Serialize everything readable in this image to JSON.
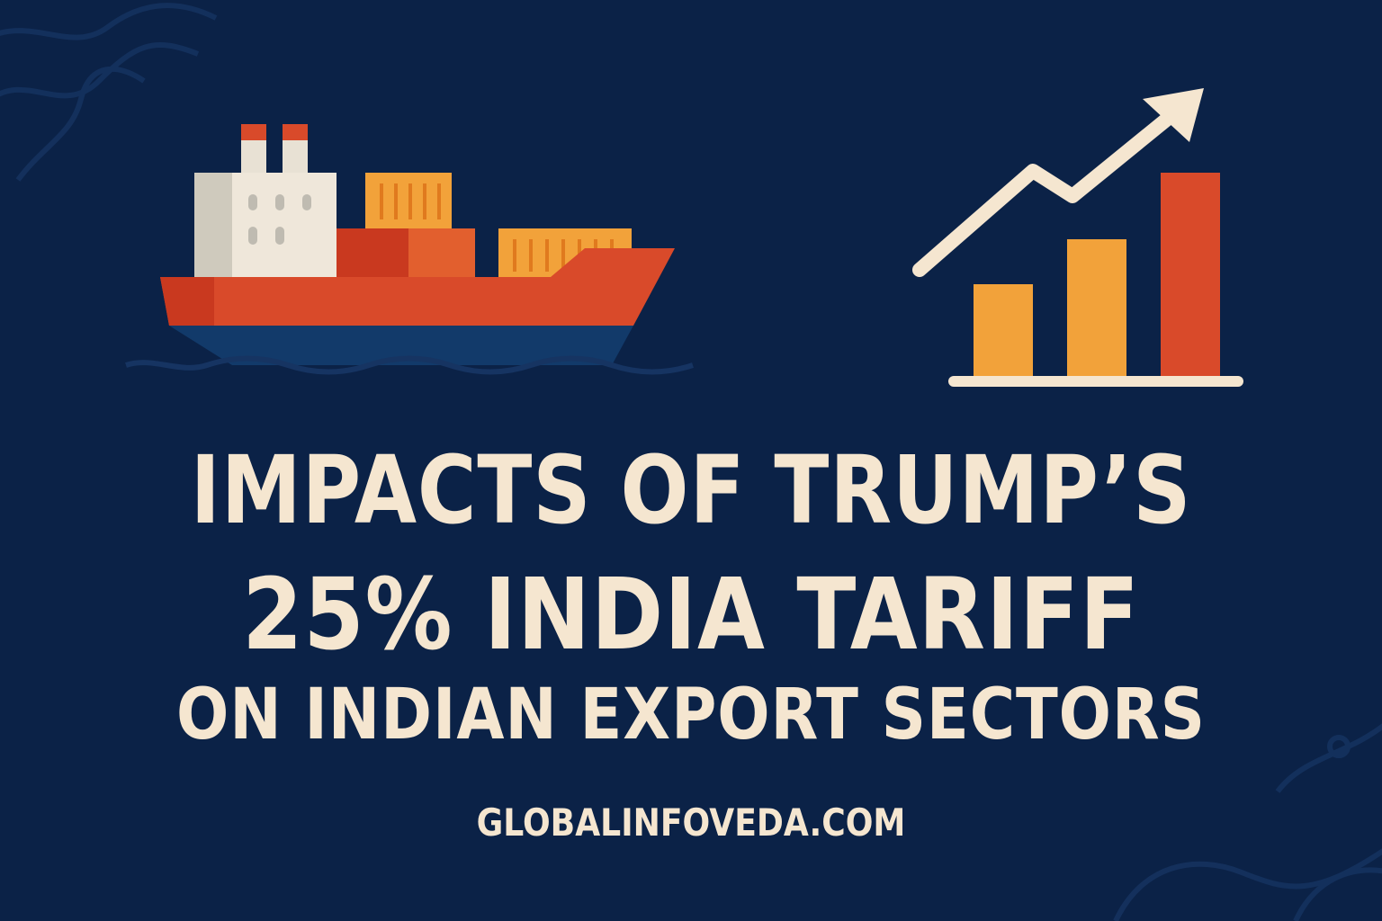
{
  "headline": {
    "line1": "IMPACTS OF TRUMP’S",
    "line2": "25% INDIA TARIFF",
    "line3": "ON INDIAN EXPORT SECTORS"
  },
  "website": "GLOBALINFOVEDA.COM",
  "colors": {
    "background": "#0b2247",
    "text": "#f5e6d0",
    "red": "#d94a2a",
    "orange": "#f2a23a",
    "hull_bottom": "#123a6a"
  },
  "icons": [
    "cargo-ship-icon",
    "growth-chart-icon",
    "trend-arrow-icon"
  ]
}
